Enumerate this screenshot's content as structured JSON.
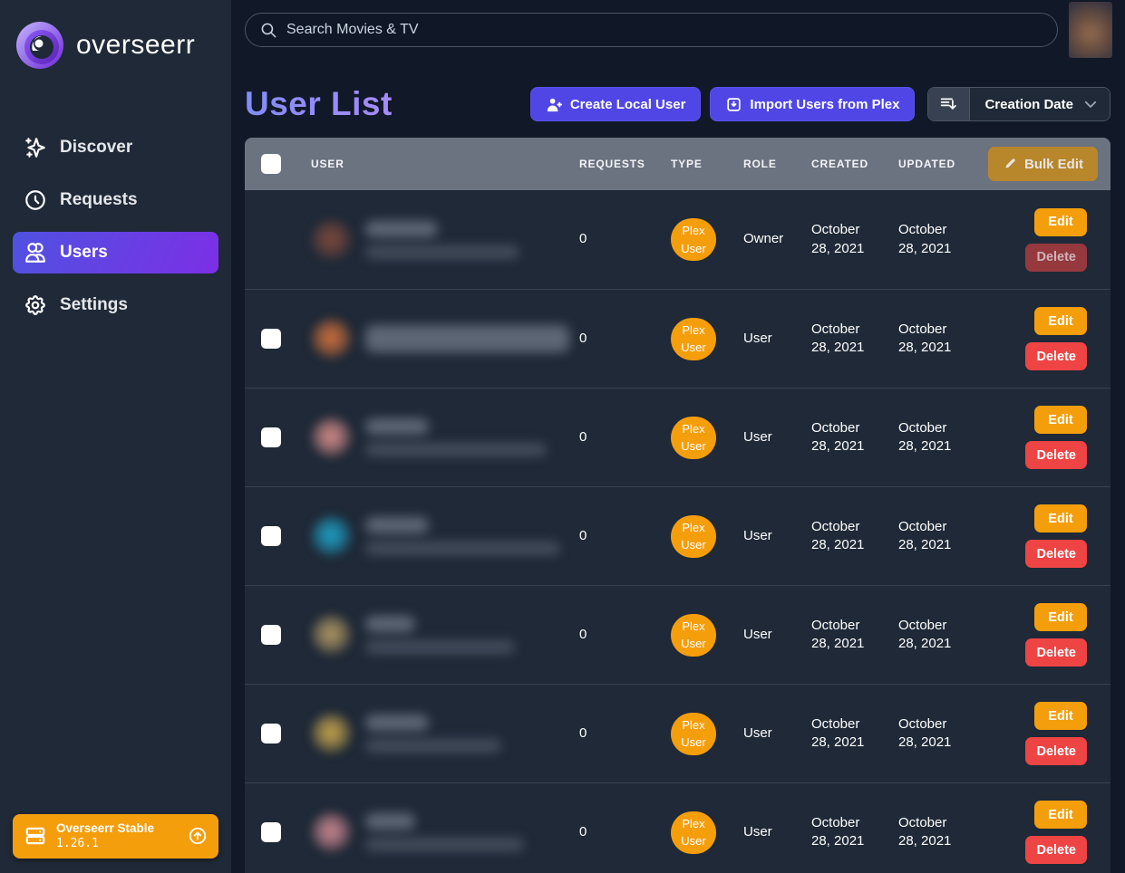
{
  "app": {
    "name": "overseerr",
    "release_channel": "Overseerr Stable",
    "version": "1.26.1"
  },
  "search": {
    "placeholder": "Search Movies & TV"
  },
  "sidebar": {
    "items": [
      {
        "label": "Discover",
        "icon": "sparkles-icon",
        "active": false
      },
      {
        "label": "Requests",
        "icon": "clock-icon",
        "active": false
      },
      {
        "label": "Users",
        "icon": "users-icon",
        "active": true
      },
      {
        "label": "Settings",
        "icon": "gear-icon",
        "active": false
      }
    ]
  },
  "page": {
    "title": "User List",
    "create_button": "Create Local User",
    "import_button": "Import Users from Plex",
    "sort": {
      "selected": "Creation Date"
    }
  },
  "table": {
    "headers": {
      "user": "User",
      "requests": "Requests",
      "type": "Type",
      "role": "Role",
      "created": "Created",
      "updated": "Updated"
    },
    "bulk_edit_label": "Bulk Edit",
    "edit_label": "Edit",
    "delete_label": "Delete",
    "rows": [
      {
        "requests": "0",
        "type": "Plex User",
        "role": "Owner",
        "created": "October 28, 2021",
        "updated": "October 28, 2021",
        "checkbox": false,
        "delete_disabled": true,
        "avatar_color": "#7e4a3c",
        "name_w": 80,
        "email_w": 170
      },
      {
        "requests": "0",
        "type": "Plex User",
        "role": "User",
        "created": "October 28, 2021",
        "updated": "October 28, 2021",
        "checkbox": true,
        "delete_disabled": false,
        "avatar_color": "#d4713c",
        "name_w": 225,
        "email_w": 0
      },
      {
        "requests": "0",
        "type": "Plex User",
        "role": "User",
        "created": "October 28, 2021",
        "updated": "October 28, 2021",
        "checkbox": true,
        "delete_disabled": false,
        "avatar_color": "#d98f8c",
        "name_w": 70,
        "email_w": 200
      },
      {
        "requests": "0",
        "type": "Plex User",
        "role": "User",
        "created": "October 28, 2021",
        "updated": "October 28, 2021",
        "checkbox": true,
        "delete_disabled": false,
        "avatar_color": "#1fa3c9",
        "name_w": 70,
        "email_w": 215
      },
      {
        "requests": "0",
        "type": "Plex User",
        "role": "User",
        "created": "October 28, 2021",
        "updated": "October 28, 2021",
        "checkbox": true,
        "delete_disabled": false,
        "avatar_color": "#b49a66",
        "name_w": 55,
        "email_w": 165
      },
      {
        "requests": "0",
        "type": "Plex User",
        "role": "User",
        "created": "October 28, 2021",
        "updated": "October 28, 2021",
        "checkbox": true,
        "delete_disabled": false,
        "avatar_color": "#c9a84e",
        "name_w": 70,
        "email_w": 150
      },
      {
        "requests": "0",
        "type": "Plex User",
        "role": "User",
        "created": "October 28, 2021",
        "updated": "October 28, 2021",
        "checkbox": true,
        "delete_disabled": false,
        "avatar_color": "#d08a92",
        "name_w": 55,
        "email_w": 175
      }
    ]
  },
  "colors": {
    "accent_indigo": "#4f46e5",
    "active_gradient_start": "#4f52e0",
    "active_gradient_end": "#7c2fe6",
    "amber": "#f59e0b",
    "red": "#ef4444",
    "table_header_gray": "#6b7280",
    "row_bg": "#1f2937",
    "page_bg": "#111827"
  }
}
